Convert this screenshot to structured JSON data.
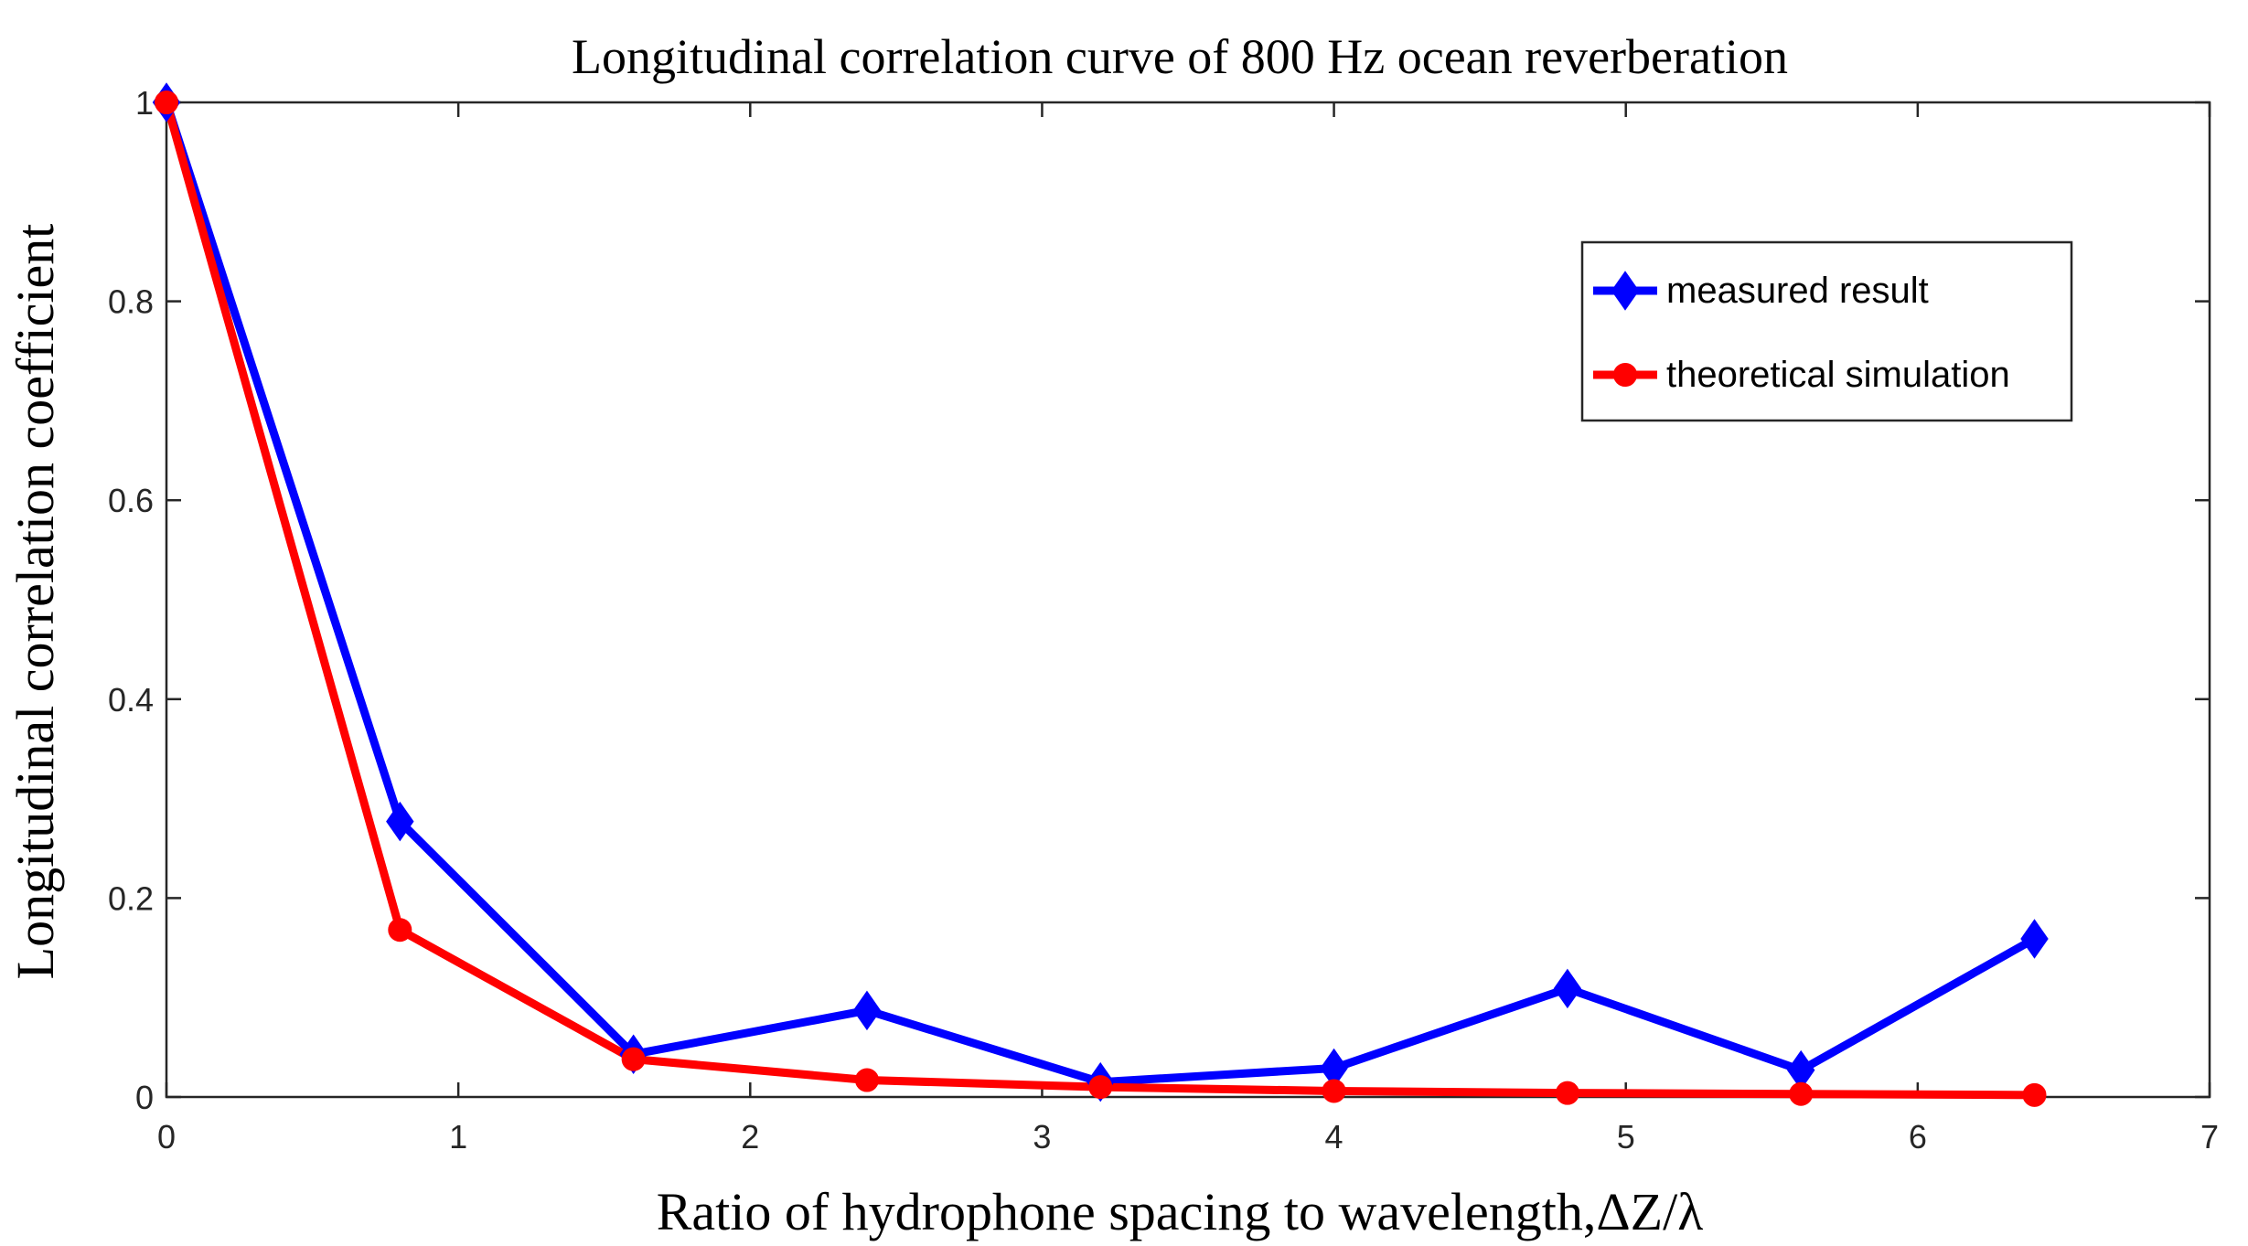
{
  "chart_data": {
    "type": "line",
    "title": "Longitudinal correlation curve of 800 Hz ocean reverberation",
    "xlabel": "Ratio of hydrophone spacing to wavelength,ΔZ/λ",
    "ylabel": "Longitudinal correlation coefficient",
    "xlim": [
      0,
      7
    ],
    "ylim": [
      0,
      1
    ],
    "xticks": [
      0,
      1,
      2,
      3,
      4,
      5,
      6,
      7
    ],
    "xtick_labels": [
      "0",
      "1",
      "2",
      "3",
      "4",
      "5",
      "6",
      "7"
    ],
    "yticks": [
      0,
      0.2,
      0.4,
      0.6,
      0.8,
      1
    ],
    "ytick_labels": [
      "0",
      "0.2",
      "0.4",
      "0.6",
      "0.8",
      "1"
    ],
    "x": [
      0,
      0.8,
      1.6,
      2.4,
      3.2,
      4.0,
      4.8,
      5.6,
      6.4
    ],
    "series": [
      {
        "name": "measured result",
        "color": "#0000ff",
        "marker": "diamond",
        "values": [
          1.0,
          0.277,
          0.043,
          0.087,
          0.015,
          0.029,
          0.109,
          0.027,
          0.159
        ]
      },
      {
        "name": "theoretical simulation",
        "color": "#ff0000",
        "marker": "circle",
        "values": [
          1.0,
          0.168,
          0.038,
          0.017,
          0.01,
          0.006,
          0.004,
          0.003,
          0.002
        ]
      }
    ],
    "legend_position": "top-right",
    "grid": false
  }
}
